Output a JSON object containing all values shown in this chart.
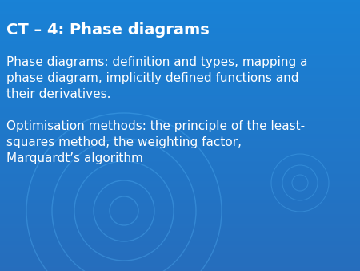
{
  "title": "CT – 4: Phase diagrams",
  "body_text_1": "Phase diagrams: definition and types, mapping a\nphase diagram, implicitly defined functions and\ntheir derivatives.",
  "body_text_2": "Optimisation methods: the principle of the least-\nsquares method, the weighting factor,\nMarquardt’s algorithm",
  "bg_color": "#1a82d4",
  "bg_color_bottom": "#1a6fc4",
  "title_color": "#ffffff",
  "body_color": "#ffffff",
  "title_fontsize": 14,
  "body_fontsize": 11,
  "figsize": [
    4.5,
    3.38
  ],
  "dpi": 100
}
